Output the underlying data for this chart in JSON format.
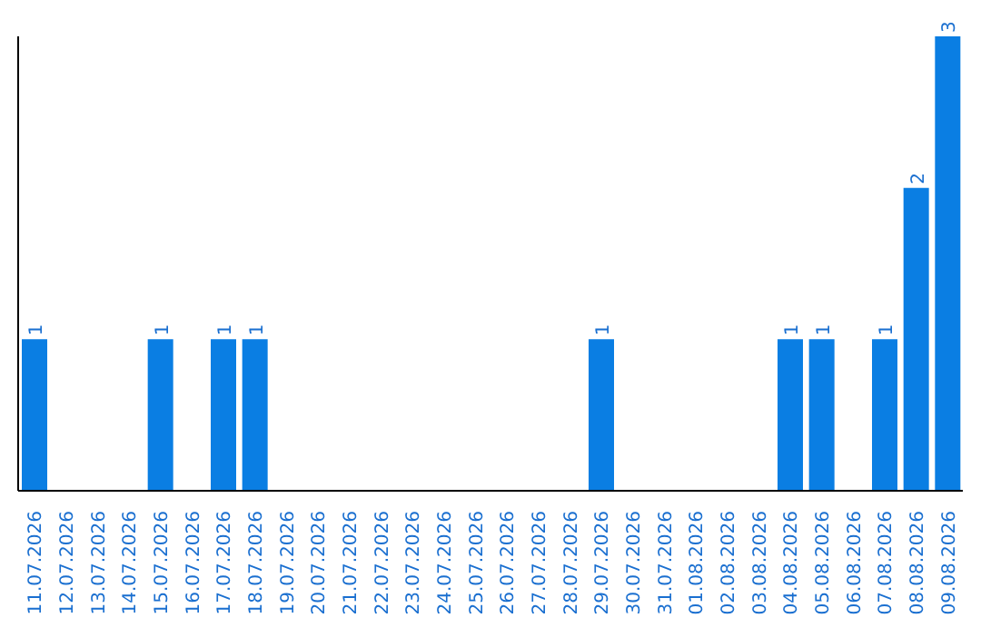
{
  "chart_data": {
    "type": "bar",
    "categories": [
      "11.07.2026",
      "12.07.2026",
      "13.07.2026",
      "14.07.2026",
      "15.07.2026",
      "16.07.2026",
      "17.07.2026",
      "18.07.2026",
      "19.07.2026",
      "20.07.2026",
      "21.07.2026",
      "22.07.2026",
      "23.07.2026",
      "24.07.2026",
      "25.07.2026",
      "26.07.2026",
      "27.07.2026",
      "28.07.2026",
      "29.07.2026",
      "30.07.2026",
      "31.07.2026",
      "01.08.2026",
      "02.08.2026",
      "03.08.2026",
      "04.08.2026",
      "05.08.2026",
      "06.08.2026",
      "07.08.2026",
      "08.08.2026",
      "09.08.2026"
    ],
    "values": [
      1,
      0,
      0,
      0,
      1,
      0,
      1,
      1,
      0,
      0,
      0,
      0,
      0,
      0,
      0,
      0,
      0,
      0,
      1,
      0,
      0,
      0,
      0,
      0,
      1,
      1,
      0,
      1,
      2,
      3
    ],
    "value_labels": [
      "1",
      null,
      null,
      null,
      "1",
      null,
      "1",
      "1",
      null,
      null,
      null,
      null,
      null,
      null,
      null,
      null,
      null,
      null,
      "1",
      null,
      null,
      null,
      null,
      null,
      "1",
      "1",
      null,
      "1",
      "2",
      "3"
    ],
    "color": "#0a7ee3",
    "grid": false,
    "legend": false
  }
}
